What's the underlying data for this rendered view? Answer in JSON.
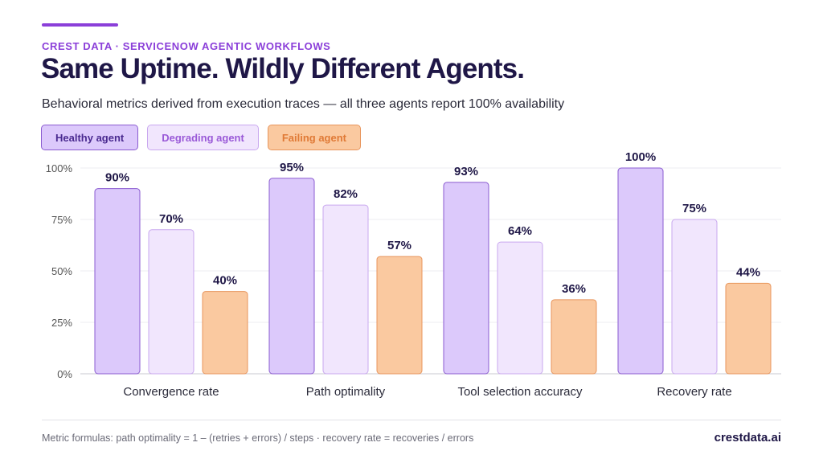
{
  "header": {
    "eyebrow": "CREST DATA · SERVICENOW AGENTIC WORKFLOWS",
    "title": "Same Uptime. Wildly Different Agents.",
    "subtitle": "Behavioral metrics derived from execution traces — all three agents report 100% availability"
  },
  "colors": {
    "accent": "#8b3fd9",
    "healthy_fill": "#dcc9fb",
    "healthy_stroke": "#8a5bd0",
    "degrading_fill": "#f1e6fd",
    "degrading_stroke": "#c9a8ef",
    "failing_fill": "#fac9a0",
    "failing_stroke": "#e8955c",
    "healthy_text": "#4a2a90",
    "degrading_text": "#9a5ad8",
    "failing_text": "#e07a36"
  },
  "legend": [
    {
      "label": "Healthy agent",
      "series": "healthy"
    },
    {
      "label": "Degrading agent",
      "series": "degrading"
    },
    {
      "label": "Failing agent",
      "series": "failing"
    }
  ],
  "chart_data": {
    "type": "bar",
    "categories": [
      "Convergence rate",
      "Path optimality",
      "Tool selection accuracy",
      "Recovery rate"
    ],
    "series": [
      {
        "name": "Healthy agent",
        "key": "healthy",
        "values": [
          90,
          95,
          93,
          100
        ],
        "labels": [
          "90%",
          "95%",
          "93%",
          "100%"
        ]
      },
      {
        "name": "Degrading agent",
        "key": "degrading",
        "values": [
          70,
          82,
          64,
          75
        ],
        "labels": [
          "70%",
          "82%",
          "64%",
          "75%"
        ]
      },
      {
        "name": "Failing agent",
        "key": "failing",
        "values": [
          40,
          57,
          36,
          44
        ],
        "labels": [
          "40%",
          "57%",
          "36%",
          "44%"
        ]
      }
    ],
    "yticks": [
      0,
      25,
      50,
      75,
      100
    ],
    "ytick_labels": [
      "0%",
      "25%",
      "50%",
      "75%",
      "100%"
    ],
    "ylim": [
      0,
      100
    ],
    "grid": true,
    "legend_position": "top-left"
  },
  "footer": {
    "note": "Metric formulas: path optimality = 1 – (retries + errors) / steps · recovery rate = recoveries / errors",
    "brand": "crestdata.ai"
  }
}
